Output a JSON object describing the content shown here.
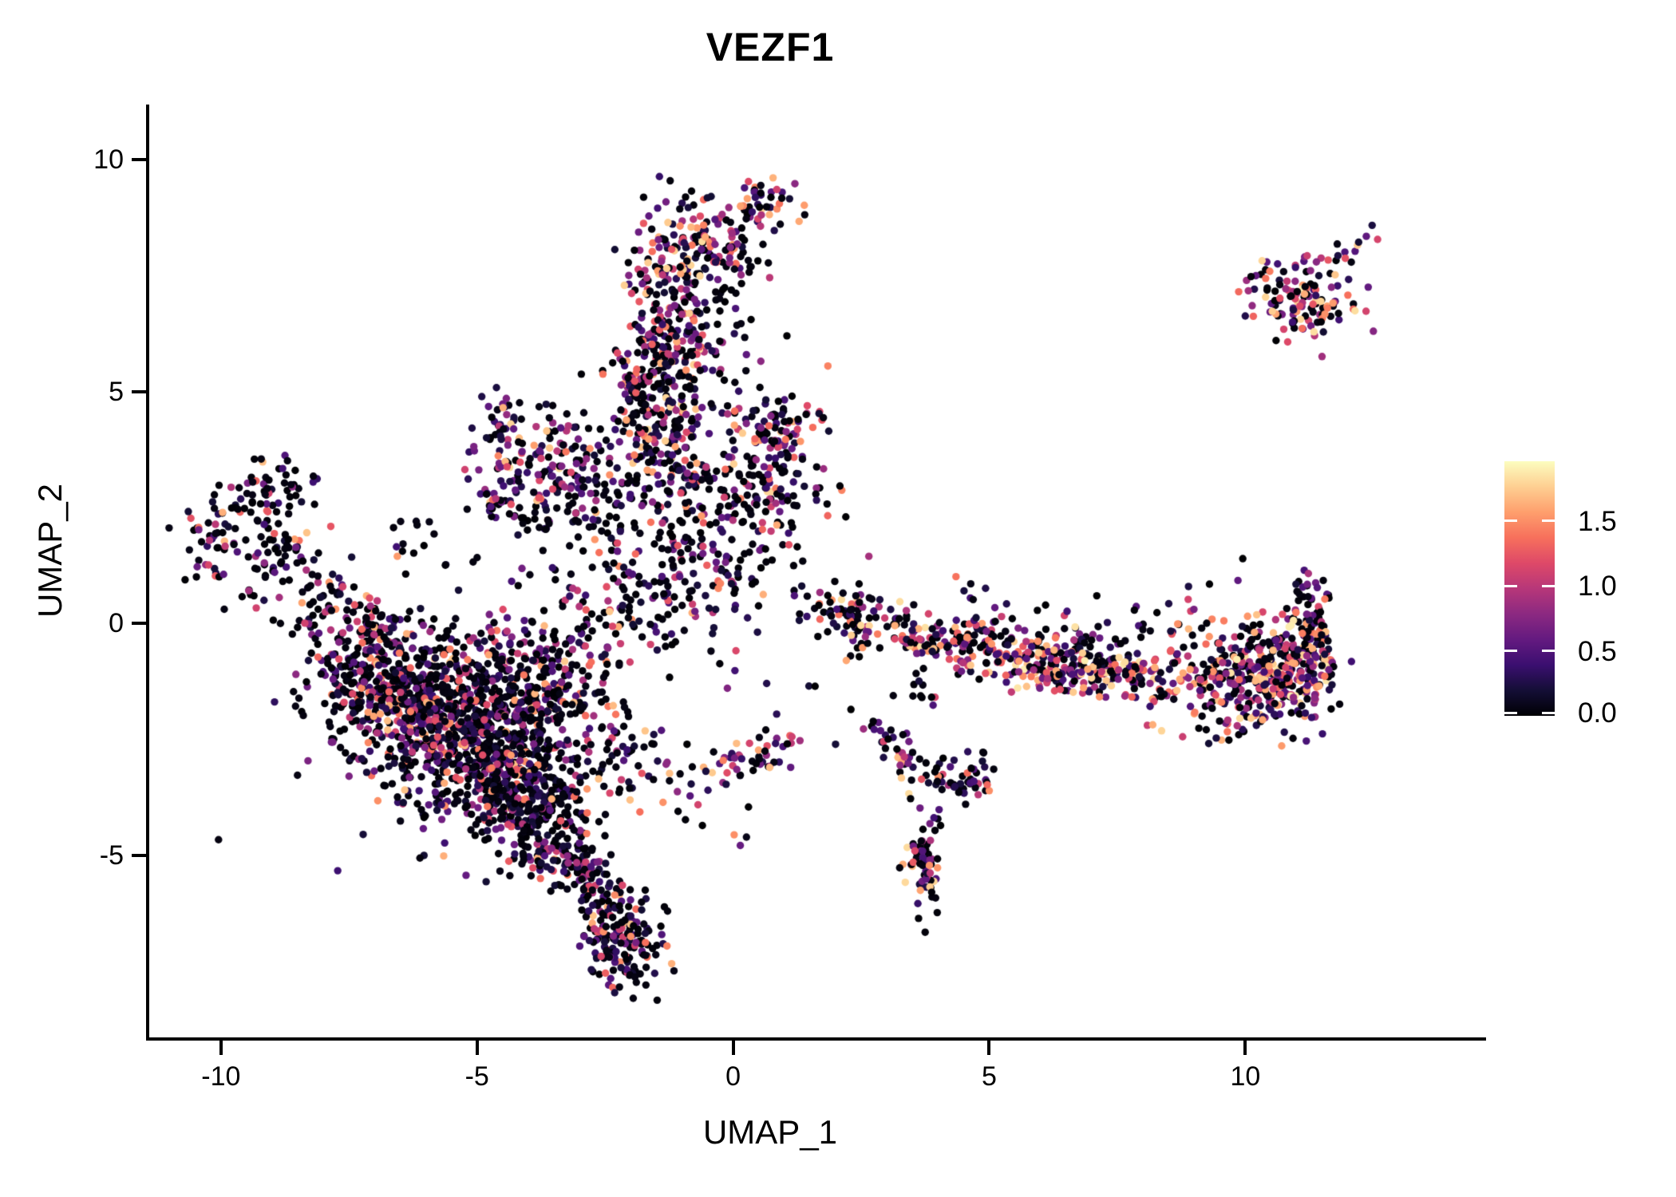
{
  "title": "VEZF1",
  "x_axis": {
    "label": "UMAP_1",
    "tick_labels": [
      "-10",
      "-5",
      "0",
      "5",
      "10"
    ],
    "tick_values": [
      -10,
      -5,
      0,
      5,
      10
    ]
  },
  "y_axis": {
    "label": "UMAP_2",
    "tick_labels": [
      "10",
      "5",
      "0",
      "-5"
    ],
    "tick_values": [
      10,
      5,
      0,
      -5
    ]
  },
  "legend": {
    "tick_labels": [
      "1.5",
      "1.0",
      "0.5",
      "0.0"
    ],
    "tick_values": [
      1.5,
      1.0,
      0.5,
      0.0
    ],
    "vmin": 0,
    "vmax": 1.96,
    "colormap_name": "magma",
    "colormap": [
      "#000004",
      "#140E36",
      "#3B0F70",
      "#641A80",
      "#8C2981",
      "#B73779",
      "#DE4968",
      "#F7705C",
      "#FE9F6D",
      "#FECF92",
      "#FCFDBF"
    ]
  },
  "chart_data": {
    "type": "scatter",
    "title": "VEZF1",
    "xlabel": "UMAP_1",
    "ylabel": "UMAP_2",
    "xlim": [
      -11.4,
      14.7
    ],
    "ylim": [
      -8.95,
      11.15
    ],
    "x_ticks": [
      -10,
      -5,
      0,
      5,
      10
    ],
    "y_ticks": [
      10,
      5,
      0,
      -5
    ],
    "color_scale": {
      "name": "magma",
      "domain": [
        0,
        1.96
      ]
    },
    "point_radius_px": 4.7,
    "n_points_approx": 5600,
    "seed": 42,
    "mix_profiles": {
      "low": {
        "p_zero": 0.53,
        "exp": 2.0,
        "vmax": 1.75
      },
      "mid": {
        "p_zero": 0.4,
        "exp": 1.5,
        "vmax": 1.85
      },
      "high": {
        "p_zero": 0.25,
        "exp": 1.1,
        "vmax": 1.9
      }
    },
    "clusters": [
      {
        "t": "g",
        "x": 0.62,
        "y": 9.05,
        "sx": 0.32,
        "sy": 0.27,
        "n": 48,
        "m": "mid"
      },
      {
        "t": "g",
        "x": -0.9,
        "y": 8.1,
        "sx": 0.55,
        "sy": 0.55,
        "n": 150,
        "m": "mid"
      },
      {
        "t": "g",
        "x": -0.15,
        "y": 7.6,
        "sx": 0.35,
        "sy": 0.55,
        "n": 22,
        "m": "low"
      },
      {
        "t": "g",
        "x": -1.2,
        "y": 6.35,
        "sx": 0.5,
        "sy": 0.7,
        "n": 135,
        "m": "mid"
      },
      {
        "t": "g",
        "x": -1.55,
        "y": 5.35,
        "sx": 0.45,
        "sy": 0.55,
        "n": 115,
        "m": "mid"
      },
      {
        "t": "g",
        "x": -0.35,
        "y": 5.9,
        "sx": 0.55,
        "sy": 0.95,
        "n": 40,
        "m": "low"
      },
      {
        "t": "g",
        "x": -1.5,
        "y": 4.35,
        "sx": 0.5,
        "sy": 0.55,
        "n": 85,
        "m": "mid"
      },
      {
        "t": "g",
        "x": -1.15,
        "y": 3.6,
        "sx": 0.6,
        "sy": 0.5,
        "n": 80,
        "m": "low"
      },
      {
        "t": "g",
        "x": 0.75,
        "y": 4.2,
        "sx": 0.45,
        "sy": 0.4,
        "n": 80,
        "m": "mid"
      },
      {
        "t": "g",
        "x": 0.7,
        "y": 2.85,
        "sx": 0.5,
        "sy": 0.55,
        "n": 85,
        "m": "mid"
      },
      {
        "t": "g",
        "x": -0.45,
        "y": 1.6,
        "sx": 0.9,
        "sy": 1.05,
        "n": 190,
        "m": "low"
      },
      {
        "t": "g",
        "x": -3.6,
        "y": 3.45,
        "sx": 0.75,
        "sy": 0.55,
        "n": 165,
        "m": "mid"
      },
      {
        "t": "g",
        "x": -4.5,
        "y": 4.4,
        "sx": 0.22,
        "sy": 0.24,
        "n": 22,
        "m": "mid"
      },
      {
        "t": "g",
        "x": -2.25,
        "y": 2.1,
        "sx": 0.9,
        "sy": 0.85,
        "n": 105,
        "m": "low"
      },
      {
        "t": "g",
        "x": -10.1,
        "y": 1.85,
        "sx": 0.3,
        "sy": 0.42,
        "n": 48,
        "m": "low"
      },
      {
        "t": "g",
        "x": -9.2,
        "y": 2.85,
        "sx": 0.55,
        "sy": 0.35,
        "n": 55,
        "m": "low"
      },
      {
        "t": "g",
        "x": -8.85,
        "y": 1.45,
        "sx": 0.4,
        "sy": 0.5,
        "n": 60,
        "m": "low"
      },
      {
        "t": "g",
        "x": -6.35,
        "y": 1.55,
        "sx": 0.5,
        "sy": 0.45,
        "n": 14,
        "m": "low"
      },
      {
        "t": "g",
        "x": -6.4,
        "y": -1.5,
        "sx": 0.8,
        "sy": 0.75,
        "n": 420,
        "m": "low"
      },
      {
        "t": "g",
        "x": -5.1,
        "y": -2.4,
        "sx": 0.85,
        "sy": 0.8,
        "n": 500,
        "m": "low"
      },
      {
        "t": "g",
        "x": -4.25,
        "y": -3.5,
        "sx": 0.6,
        "sy": 0.65,
        "n": 270,
        "m": "low"
      },
      {
        "t": "g",
        "x": -3.6,
        "y": -4.5,
        "sx": 0.45,
        "sy": 0.5,
        "n": 130,
        "m": "low"
      },
      {
        "t": "g",
        "x": -3.6,
        "y": -1.15,
        "sx": 0.75,
        "sy": 0.8,
        "n": 250,
        "m": "low"
      },
      {
        "t": "g",
        "x": -5.2,
        "y": -2.3,
        "sx": 1.6,
        "sy": 1.5,
        "n": 200,
        "m": "low"
      },
      {
        "t": "g",
        "x": -7.3,
        "y": -0.85,
        "sx": 0.5,
        "sy": 0.5,
        "n": 85,
        "m": "low"
      },
      {
        "t": "g",
        "x": -2.15,
        "y": -6.85,
        "sx": 0.42,
        "sy": 0.5,
        "n": 150,
        "m": "low"
      },
      {
        "t": "g",
        "x": -2.1,
        "y": -3.1,
        "sx": 0.55,
        "sy": 0.55,
        "n": 55,
        "m": "low"
      },
      {
        "t": "g",
        "x": 3.75,
        "y": -5.15,
        "sx": 0.17,
        "sy": 0.5,
        "n": 65,
        "m": "mid"
      },
      {
        "t": "g",
        "x": 2.45,
        "y": 0.15,
        "sx": 0.35,
        "sy": 0.4,
        "n": 70,
        "m": "mid"
      },
      {
        "t": "g",
        "x": 4.8,
        "y": -0.45,
        "sx": 0.35,
        "sy": 0.35,
        "n": 70,
        "m": "mid"
      },
      {
        "t": "g",
        "x": 10.35,
        "y": -1.05,
        "sx": 0.55,
        "sy": 0.5,
        "n": 260,
        "m": "high"
      },
      {
        "t": "g",
        "x": 11.15,
        "y": -0.85,
        "sx": 0.28,
        "sy": 0.55,
        "n": 120,
        "m": "high"
      },
      {
        "t": "g",
        "x": 8.0,
        "y": -0.35,
        "sx": 1.5,
        "sy": 0.45,
        "n": 65,
        "m": "low"
      },
      {
        "t": "g",
        "x": 9.8,
        "y": -2.0,
        "sx": 0.7,
        "sy": 0.35,
        "n": 45,
        "m": "mid"
      },
      {
        "t": "g",
        "x": 11.15,
        "y": 6.95,
        "sx": 0.5,
        "sy": 0.45,
        "n": 120,
        "m": "high"
      },
      {
        "t": "g",
        "x": 10.25,
        "y": 7.55,
        "sx": 0.2,
        "sy": 0.15,
        "n": 10,
        "m": "mid"
      }
    ],
    "lines": [
      {
        "pts": [
          [
            -8.3,
            0.85
          ],
          [
            -7.4,
            0.25
          ],
          [
            -6.6,
            -0.2
          ]
        ],
        "n": 75,
        "j": 0.25,
        "m": "low"
      },
      {
        "pts": [
          [
            -9.85,
            0.8
          ],
          [
            -8.9,
            0.15
          ],
          [
            -7.9,
            -0.35
          ]
        ],
        "n": 16,
        "j": 0.2,
        "m": "low"
      },
      {
        "pts": [
          [
            -3.05,
            -5.05
          ],
          [
            -2.7,
            -5.7
          ],
          [
            -2.45,
            -6.3
          ]
        ],
        "n": 80,
        "j": 0.28,
        "m": "low"
      },
      {
        "pts": [
          [
            -2.1,
            -7.3
          ],
          [
            -1.95,
            -7.6
          ]
        ],
        "n": 10,
        "j": 0.15,
        "m": "low"
      },
      {
        "pts": [
          [
            -0.7,
            -3.35
          ],
          [
            0.3,
            -2.95
          ],
          [
            1.2,
            -2.6
          ]
        ],
        "n": 55,
        "j": 0.22,
        "m": "mid"
      },
      {
        "pts": [
          [
            2.8,
            -2.1
          ],
          [
            3.3,
            -2.9
          ],
          [
            3.9,
            -3.35
          ],
          [
            4.6,
            -3.4
          ],
          [
            5.05,
            -3.05
          ]
        ],
        "n": 85,
        "j": 0.2,
        "m": "mid"
      },
      {
        "pts": [
          [
            -4.95,
            2.7
          ],
          [
            -4.1,
            2.35
          ],
          [
            -3.3,
            2.3
          ]
        ],
        "n": 35,
        "j": 0.18,
        "m": "low"
      },
      {
        "pts": [
          [
            1.65,
            0.75
          ],
          [
            2.0,
            0.3
          ],
          [
            2.3,
            -0.15
          ]
        ],
        "n": 14,
        "j": 0.15,
        "m": "low"
      },
      {
        "pts": [
          [
            3.0,
            -0.1
          ],
          [
            3.7,
            -0.35
          ],
          [
            4.35,
            -0.5
          ]
        ],
        "n": 70,
        "j": 0.22,
        "m": "mid"
      },
      {
        "pts": [
          [
            5.4,
            -0.7
          ],
          [
            6.5,
            -0.95
          ],
          [
            7.8,
            -1.15
          ],
          [
            9.6,
            -1.3
          ]
        ],
        "n": 330,
        "j": 0.3,
        "m": "high"
      },
      {
        "pts": [
          [
            11.25,
            -0.25
          ],
          [
            11.3,
            0.35
          ],
          [
            11.4,
            0.95
          ]
        ],
        "n": 40,
        "j": 0.16,
        "m": "mid"
      },
      {
        "pts": [
          [
            11.85,
            7.9
          ],
          [
            12.15,
            8.15
          ],
          [
            12.45,
            8.4
          ]
        ],
        "n": 12,
        "j": 0.12,
        "m": "mid"
      },
      {
        "pts": [
          [
            4.3,
            0.95
          ],
          [
            5.3,
            0.35
          ]
        ],
        "n": 8,
        "j": 0.15,
        "m": "low"
      },
      {
        "pts": [
          [
            3.5,
            -1.2
          ],
          [
            3.85,
            -1.85
          ]
        ],
        "n": 12,
        "j": 0.2,
        "m": "low"
      },
      {
        "pts": [
          [
            -2.6,
            0.5
          ],
          [
            -1.4,
            0.15
          ]
        ],
        "n": 55,
        "j": 0.45,
        "m": "low"
      }
    ],
    "extra_points": [
      [
        1.85,
        5.55,
        1.45
      ],
      [
        0.35,
        6.55,
        0
      ],
      [
        1.05,
        6.2,
        0
      ],
      [
        -0.2,
        7.2,
        0
      ],
      [
        1.15,
        4.9,
        0
      ],
      [
        1.35,
        3.6,
        0.5
      ],
      [
        2.2,
        2.3,
        0
      ],
      [
        2.65,
        1.45,
        0.9
      ],
      [
        1.6,
        -1.35,
        0
      ],
      [
        2.3,
        -1.85,
        0
      ],
      [
        0.85,
        -1.95,
        0.3
      ],
      [
        -0.6,
        -4.35,
        0
      ],
      [
        0.3,
        -3.95,
        0
      ],
      [
        4.05,
        -4.35,
        0
      ],
      [
        10.6,
        6.1,
        0
      ],
      [
        12.5,
        6.3,
        0.75
      ],
      [
        9.95,
        1.4,
        0
      ],
      [
        11.15,
        1.15,
        0.45
      ],
      [
        0.02,
        -4.55,
        1.5
      ],
      [
        0.14,
        -4.78,
        0.6
      ],
      [
        0.26,
        -4.6,
        0.08
      ],
      [
        -8.55,
        3.3,
        0
      ],
      [
        -8.2,
        3.05,
        0.4
      ],
      [
        5.0,
        -3.6,
        1.5
      ],
      [
        4.1,
        -2.9,
        0
      ],
      [
        -0.9,
        -2.6,
        0
      ],
      [
        -1.4,
        -2.3,
        0.5
      ],
      [
        6.1,
        0.4,
        0
      ],
      [
        7.1,
        0.6,
        0
      ],
      [
        9.3,
        0.85,
        0
      ],
      [
        2.0,
        -2.6,
        0.2
      ]
    ]
  }
}
